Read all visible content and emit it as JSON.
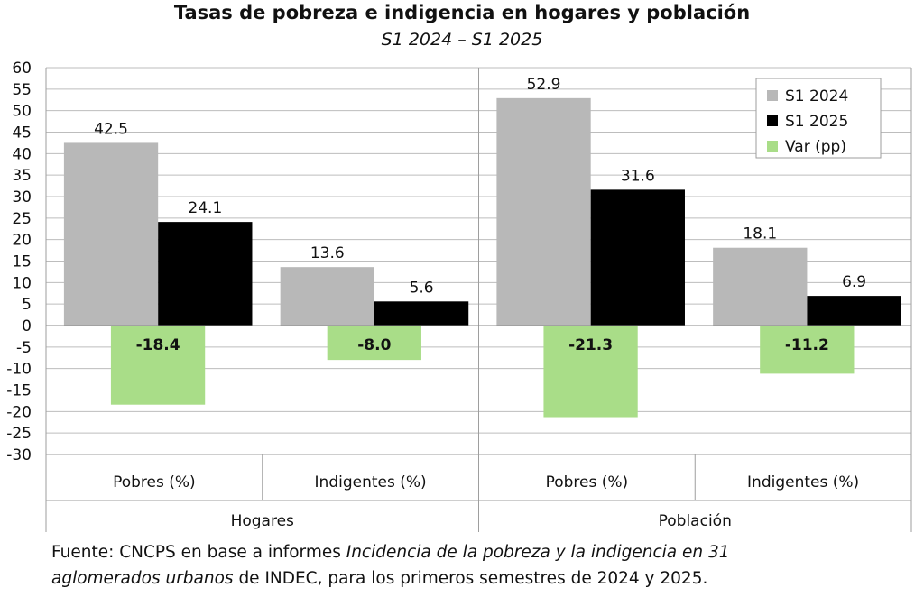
{
  "chart_data": {
    "type": "bar",
    "title": "Tasas de pobreza e indigencia en hogares y población",
    "subtitle": "S1 2024 – S1 2025",
    "groups": [
      {
        "name": "Hogares",
        "categories": [
          "Pobres (%)",
          "Indigentes (%)"
        ]
      },
      {
        "name": "Población",
        "categories": [
          "Pobres (%)",
          "Indigentes (%)"
        ]
      }
    ],
    "series": [
      {
        "name": "S1 2024",
        "color": "#b8b8b8",
        "values": [
          42.5,
          13.6,
          52.9,
          18.1
        ],
        "labels": [
          "42.5",
          "13.6",
          "52.9",
          "18.1"
        ]
      },
      {
        "name": "S1 2025",
        "color": "#000000",
        "values": [
          24.1,
          5.6,
          31.6,
          6.9
        ],
        "labels": [
          "24.1",
          "5.6",
          "31.6",
          "6.9"
        ]
      },
      {
        "name": "Var (pp)",
        "color": "#a9dd88",
        "values": [
          -18.4,
          -8.0,
          -21.3,
          -11.2
        ],
        "labels": [
          "-18.4",
          "-8.0",
          "-21.3",
          "-11.2"
        ]
      }
    ],
    "y_ticks": [
      "60",
      "55",
      "50",
      "45",
      "40",
      "35",
      "30",
      "25",
      "20",
      "15",
      "10",
      "5",
      "0",
      "-5",
      "-10",
      "-15",
      "-20",
      "-25",
      "-30"
    ],
    "ylim": [
      -30,
      60
    ],
    "grid": true,
    "legend_position": "top-right"
  },
  "footer": {
    "part1": "Fuente: CNCPS en base a informes ",
    "italic1": "Incidencia de la pobreza y la indigencia en 31",
    "italic2": "aglomerados urbanos",
    "part2": " de INDEC, para los primeros semestres de 2024 y 2025."
  }
}
